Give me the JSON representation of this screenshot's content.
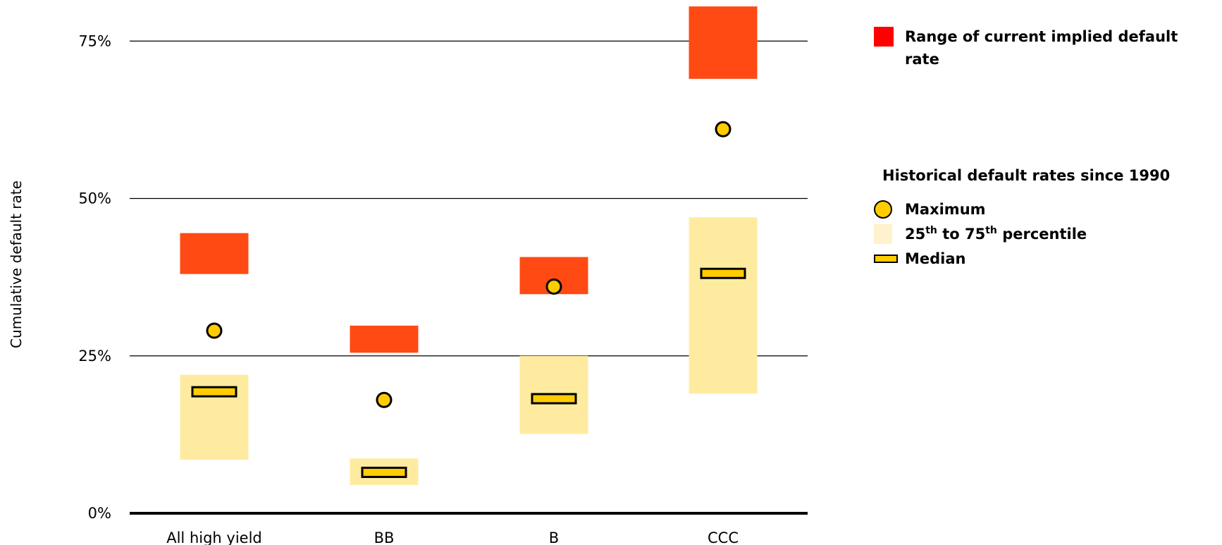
{
  "chart_data": {
    "type": "range",
    "ylabel": "Cumulative default rate",
    "ylim": [
      0,
      80
    ],
    "yticks": [
      {
        "value": 0,
        "label": "0%"
      },
      {
        "value": 25,
        "label": "25%"
      },
      {
        "value": 50,
        "label": "50%"
      },
      {
        "value": 75,
        "label": "75%"
      }
    ],
    "grid": true,
    "legend_position": "right",
    "categories": [
      "All high yield",
      "BB",
      "B",
      "CCC"
    ],
    "series": [
      {
        "name": "Range of current implied default rate",
        "values": [
          [
            38.0,
            44.5
          ],
          [
            25.5,
            29.8
          ],
          [
            34.8,
            40.7
          ],
          [
            69.0,
            80.5
          ]
        ]
      },
      {
        "name": "Maximum",
        "values": [
          29,
          18,
          36,
          61
        ]
      },
      {
        "name": "25th to 75th percentile",
        "values": [
          [
            8.5,
            22.0
          ],
          [
            4.5,
            8.7
          ],
          [
            12.6,
            25.0
          ],
          [
            19.0,
            47.0
          ]
        ]
      },
      {
        "name": "Median",
        "values": [
          19.3,
          6.5,
          18.2,
          38.1
        ]
      }
    ],
    "colors": {
      "range": "#ff4a14",
      "range_legend": "#ff0000",
      "percentile": "#ffeba0",
      "percentile_legend": "#fff2cc",
      "marker": "#ffcc00",
      "outline": "#000000"
    }
  },
  "legend": {
    "range_label": "Range of current implied default rate",
    "hist_title": "Historical default rates since 1990",
    "maximum_label": "Maximum",
    "pct_from": "25",
    "pct_to_word": "to",
    "pct_to": "75",
    "ordinal_suffix": "th",
    "pct_suffix": "percentile",
    "median_label": "Median"
  }
}
